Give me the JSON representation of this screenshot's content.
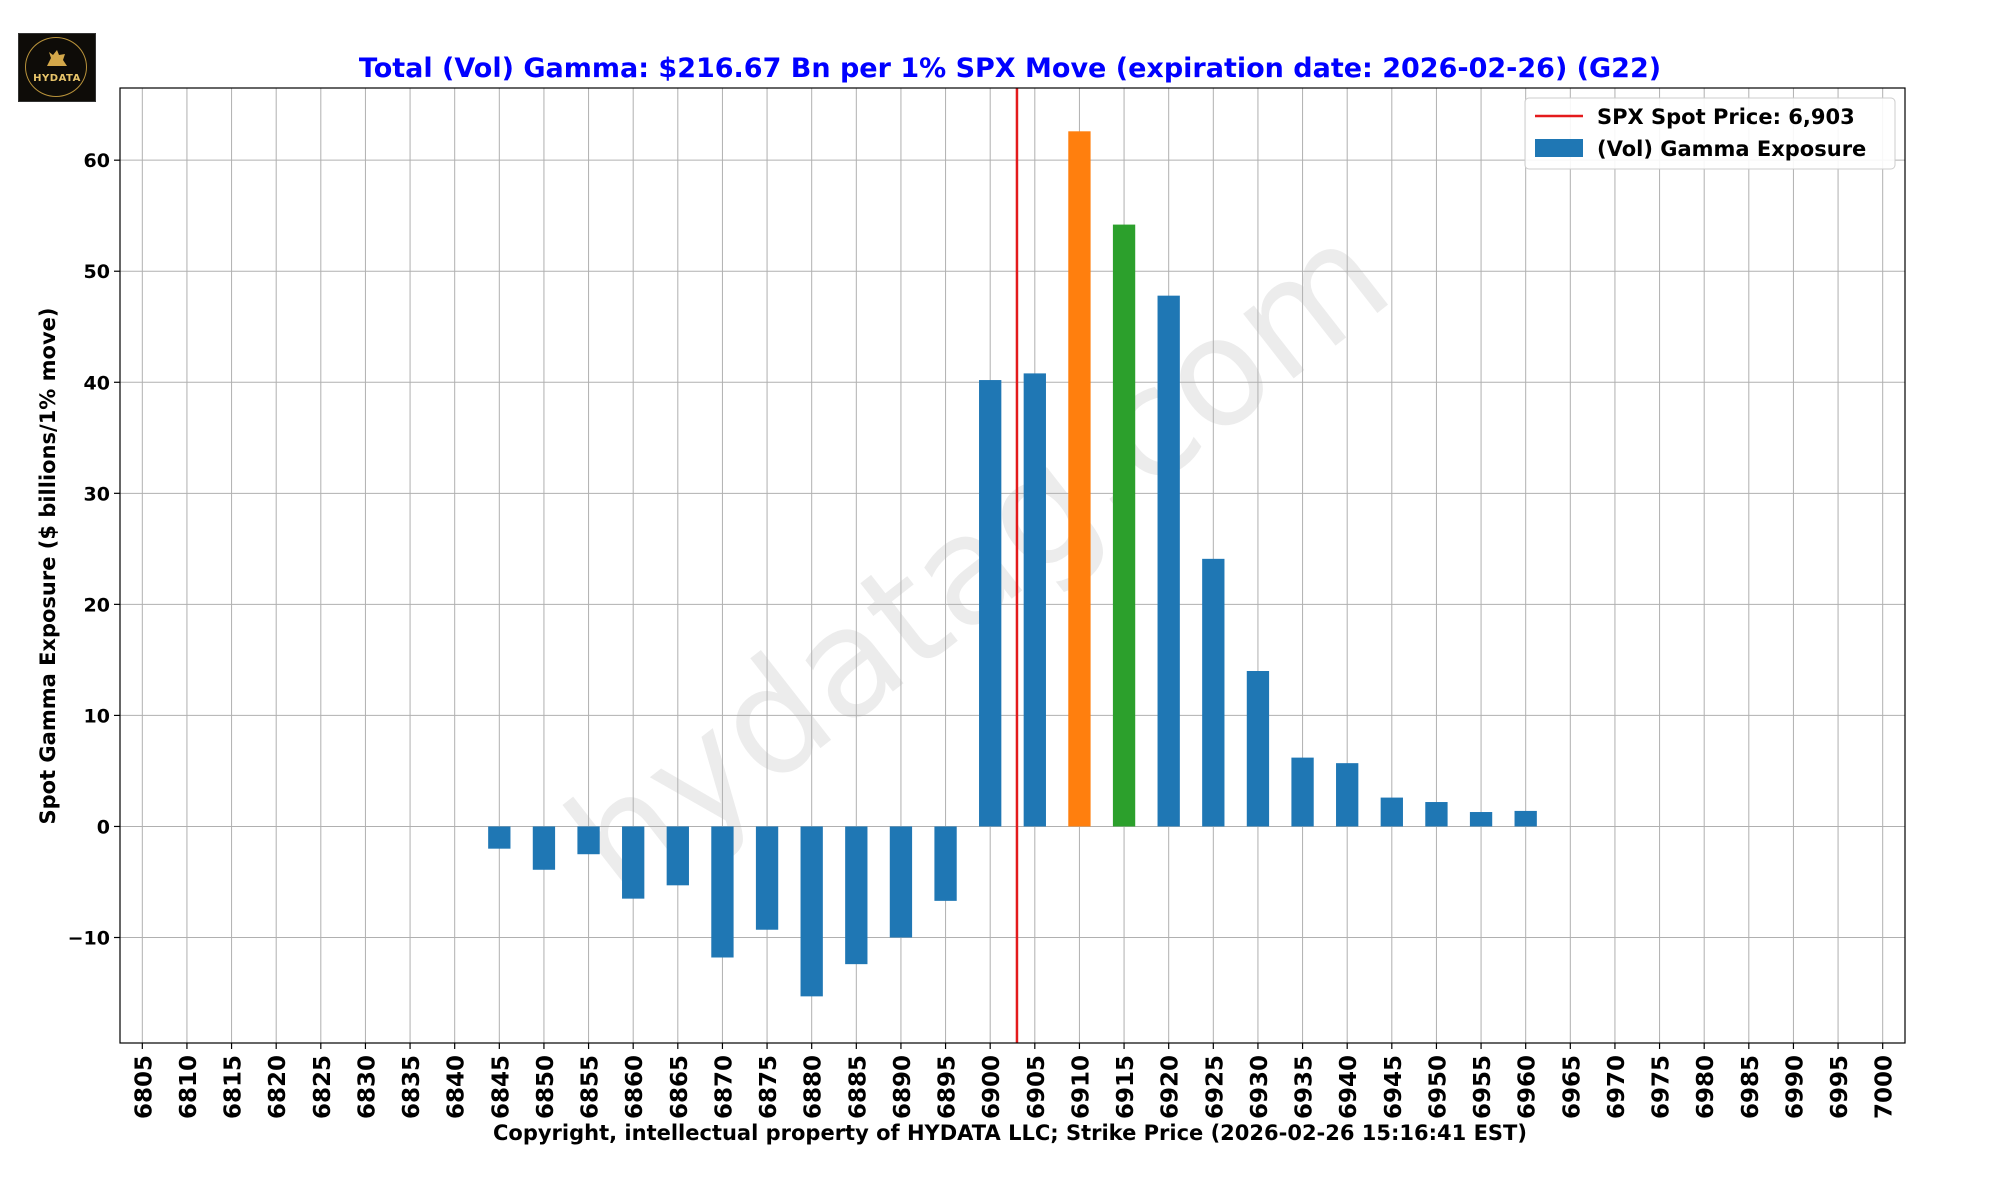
{
  "logo": {
    "text": "HYDATA"
  },
  "chart_data": {
    "type": "bar",
    "title": "Total (Vol) Gamma: $216.67 Bn per 1% SPX Move (expiration date: 2026-02-26) (G22)",
    "xlabel": "Copyright, intellectual property of HYDATA LLC; Strike Price (2026-02-26 15:16:41 EST)",
    "ylabel": "Spot Gamma Exposure ($ billions/1% move)",
    "ylim": [
      -19.5,
      66.5
    ],
    "yticks": [
      -10,
      0,
      10,
      20,
      30,
      40,
      50,
      60
    ],
    "ytick_labels": [
      "−10",
      "0",
      "10",
      "20",
      "30",
      "40",
      "50",
      "60"
    ],
    "grid": true,
    "watermark": "hydatag.com",
    "legend": {
      "placement": "top-right",
      "spot_label": "SPX Spot Price: 6,903",
      "bar_label": "(Vol) Gamma Exposure"
    },
    "spot_price": 6903,
    "categories": [
      "6805",
      "6810",
      "6815",
      "6820",
      "6825",
      "6830",
      "6835",
      "6840",
      "6845",
      "6850",
      "6855",
      "6860",
      "6865",
      "6870",
      "6875",
      "6880",
      "6885",
      "6890",
      "6895",
      "6900",
      "6905",
      "6910",
      "6915",
      "6920",
      "6925",
      "6930",
      "6935",
      "6940",
      "6945",
      "6950",
      "6955",
      "6960",
      "6965",
      "6970",
      "6975",
      "6980",
      "6985",
      "6990",
      "6995",
      "7000"
    ],
    "values": [
      0,
      0,
      0,
      0,
      0,
      0,
      0,
      0,
      -2.0,
      -3.9,
      -2.5,
      -6.5,
      -5.3,
      -11.8,
      -9.3,
      -15.3,
      -12.4,
      -10.0,
      -6.7,
      40.2,
      40.8,
      62.6,
      54.2,
      47.8,
      24.1,
      14.0,
      6.2,
      5.7,
      2.6,
      2.2,
      1.3,
      1.4,
      0,
      0,
      0,
      0,
      0,
      0,
      0,
      0
    ],
    "colors": {
      "default": "#1f77b4",
      "highlights": {
        "6910": "#ff7f0e",
        "6915": "#2ca02c"
      },
      "spot_line": "#e41a1c",
      "title": "#0000ff"
    }
  }
}
